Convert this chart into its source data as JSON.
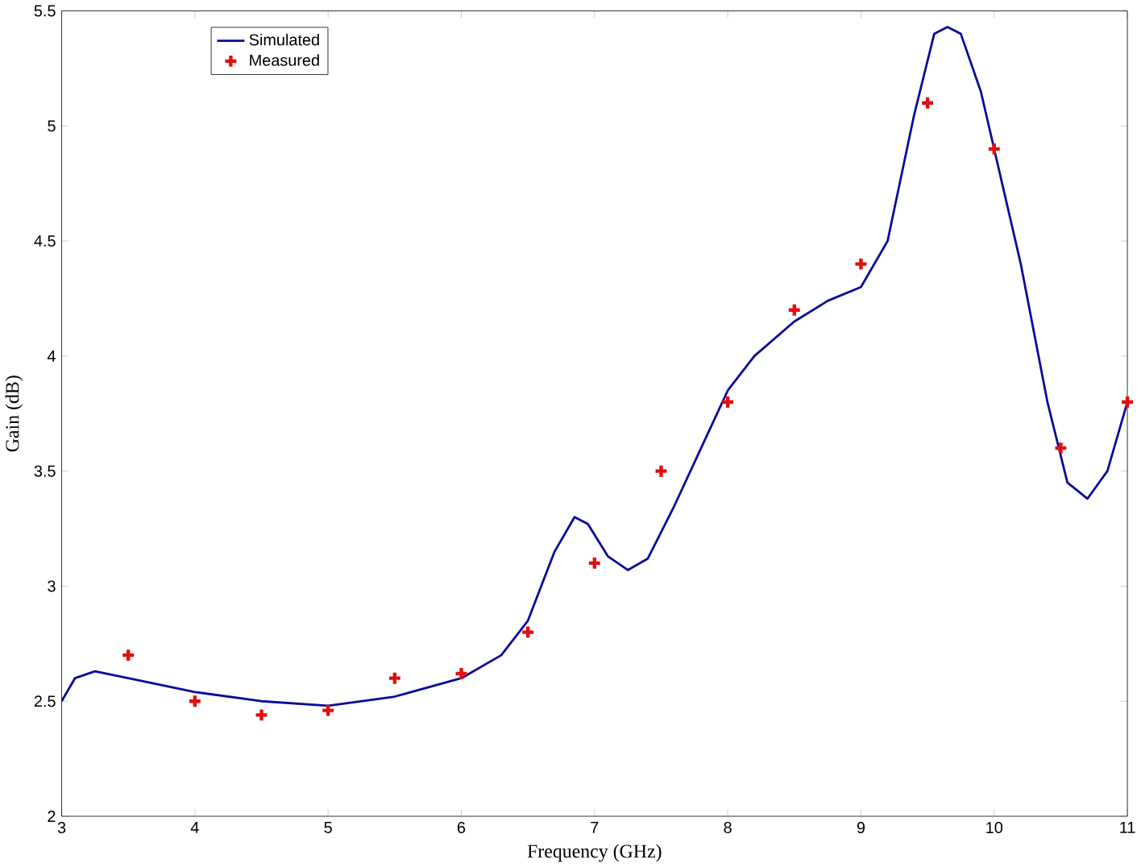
{
  "chart_data": {
    "type": "line",
    "xlabel": "Frequency (GHz)",
    "ylabel": "Gain (dB)",
    "xlim": [
      3,
      11
    ],
    "ylim": [
      2,
      5.5
    ],
    "xticks": [
      3,
      4,
      5,
      6,
      7,
      8,
      9,
      10,
      11
    ],
    "yticks": [
      2,
      2.5,
      3,
      3.5,
      4,
      4.5,
      5,
      5.5
    ],
    "grid": false,
    "legend": "top left",
    "series": [
      {
        "name": "Simulated",
        "color": "#0a0a9a",
        "marker": "none",
        "line_style": "solid",
        "x": [
          3,
          3.1,
          3.25,
          3.5,
          4,
          4.5,
          5,
          5.5,
          6,
          6.3,
          6.5,
          6.7,
          6.85,
          6.95,
          7.1,
          7.25,
          7.4,
          7.6,
          7.8,
          8,
          8.2,
          8.5,
          8.75,
          9,
          9.2,
          9.4,
          9.55,
          9.65,
          9.75,
          9.9,
          10,
          10.2,
          10.4,
          10.55,
          10.7,
          10.85,
          11
        ],
        "values": [
          2.5,
          2.6,
          2.63,
          2.6,
          2.54,
          2.5,
          2.48,
          2.52,
          2.6,
          2.7,
          2.85,
          3.15,
          3.3,
          3.27,
          3.13,
          3.07,
          3.12,
          3.35,
          3.6,
          3.85,
          4.0,
          4.15,
          4.24,
          4.3,
          4.5,
          5.05,
          5.4,
          5.43,
          5.4,
          5.15,
          4.9,
          4.4,
          3.8,
          3.45,
          3.38,
          3.5,
          3.8
        ]
      },
      {
        "name": "Measured",
        "type": "scatter",
        "color": "#e01010",
        "marker": "cross",
        "x": [
          3.5,
          4,
          4.5,
          5,
          5.5,
          6,
          6.5,
          7,
          7.5,
          8,
          8.5,
          9,
          9.5,
          10,
          10.5,
          11
        ],
        "values": [
          2.7,
          2.5,
          2.44,
          2.46,
          2.6,
          2.62,
          2.8,
          3.1,
          3.5,
          3.8,
          4.2,
          4.4,
          5.1,
          4.9,
          3.6,
          3.8
        ]
      }
    ]
  }
}
